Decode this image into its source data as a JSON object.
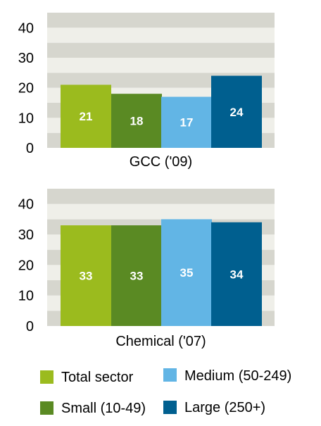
{
  "chart_data": [
    {
      "type": "bar",
      "categories": [
        "GCC ('09)"
      ],
      "series": [
        {
          "name": "Total sector",
          "values": [
            21
          ]
        },
        {
          "name": "Small (10-49)",
          "values": [
            18
          ]
        },
        {
          "name": "Medium (50-249)",
          "values": [
            17
          ]
        },
        {
          "name": "Large (250+)",
          "values": [
            24
          ]
        }
      ],
      "data_labels": [
        "21",
        "18",
        "17",
        "24"
      ],
      "ylim": [
        0,
        45
      ],
      "yticks": [
        "0",
        "10",
        "20",
        "30",
        "40"
      ],
      "grid": "alternating bands",
      "xlabel": "GCC ('09)"
    },
    {
      "type": "bar",
      "categories": [
        "Chemical ('07)"
      ],
      "series": [
        {
          "name": "Total sector",
          "values": [
            33
          ]
        },
        {
          "name": "Small (10-49)",
          "values": [
            33
          ]
        },
        {
          "name": "Medium (50-249)",
          "values": [
            35
          ]
        },
        {
          "name": "Large (250+)",
          "values": [
            34
          ]
        }
      ],
      "data_labels": [
        "33",
        "33",
        "35",
        "34"
      ],
      "ylim": [
        0,
        45
      ],
      "yticks": [
        "0",
        "10",
        "20",
        "30",
        "40"
      ],
      "grid": "alternating bands",
      "xlabel": "Chemical ('07)"
    }
  ],
  "legend": {
    "placement": "bottom",
    "items": [
      {
        "label": "Total sector",
        "color": "#9bbb1e"
      },
      {
        "label": "Medium (50-249)",
        "color": "#62b5e5"
      },
      {
        "label": "Small (10-49)",
        "color": "#5a8a23"
      },
      {
        "label": "Large (250+)",
        "color": "#005f8f"
      }
    ]
  },
  "colors": {
    "band_dark": "#d6d6ce",
    "band_light": "#efefe9",
    "series": [
      "#9bbb1e",
      "#5a8a23",
      "#62b5e5",
      "#005f8f"
    ]
  }
}
